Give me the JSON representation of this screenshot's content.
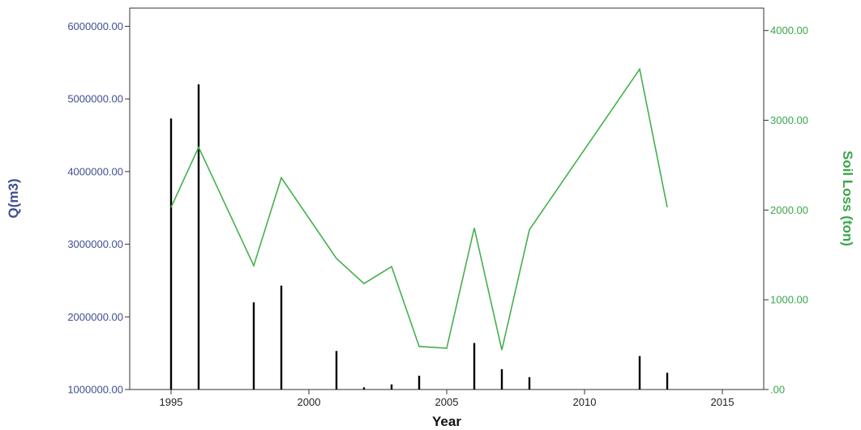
{
  "chart_data": {
    "type": "bar+line",
    "xlabel": "Year",
    "ylabel_left": "Q(m3)",
    "ylabel_right": "Soil Loss (ton)",
    "xlim": [
      1993.5,
      2016.5
    ],
    "ylim_left": [
      1000000,
      6250000
    ],
    "ylim_right": [
      0,
      4250
    ],
    "x_ticks": [
      "1995",
      "2000",
      "2005",
      "2010",
      "2015"
    ],
    "y_left_ticks": [
      "1000000.00",
      "2000000.00",
      "3000000.00",
      "4000000.00",
      "5000000.00",
      "6000000.00"
    ],
    "y_right_ticks": [
      ".00",
      "1000.00",
      "2000.00",
      "3000.00",
      "4000.00"
    ],
    "bars": {
      "axis": "left",
      "color": "#000000",
      "x": [
        1995,
        1996,
        1998,
        1999,
        2001,
        2002,
        2003,
        2004,
        2006,
        2007,
        2008,
        2012,
        2013
      ],
      "values": [
        4730000,
        5200000,
        2200000,
        2430000,
        1530000,
        1030000,
        1070000,
        1190000,
        1640000,
        1280000,
        1170000,
        1460000,
        1230000
      ]
    },
    "line": {
      "axis": "right",
      "color": "#44b04c",
      "x": [
        1995,
        1996,
        1998,
        1999,
        2001,
        2002,
        2003,
        2004,
        2005,
        2006,
        2007,
        2008,
        2012,
        2013
      ],
      "values": [
        2030,
        2700,
        1380,
        2360,
        1460,
        1180,
        1370,
        480,
        460,
        1800,
        440,
        1780,
        3570,
        2030
      ]
    },
    "grid": false,
    "legend": "none"
  }
}
